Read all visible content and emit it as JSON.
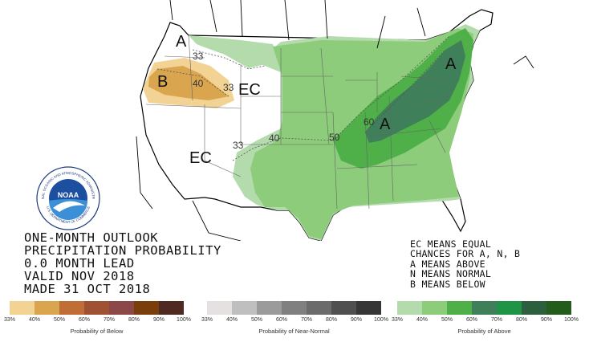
{
  "outlook_text": [
    "ONE-MONTH OUTLOOK",
    "PRECIPITATION PROBABILITY",
    "0.0 MONTH LEAD",
    "VALID NOV 2018",
    "MADE 31 OCT 2018"
  ],
  "legend_notes": [
    "EC MEANS EQUAL",
    "CHANCES FOR A, N, B",
    "A MEANS ABOVE",
    "N MEANS NORMAL",
    "B MEANS BELOW"
  ],
  "map_labels": {
    "a_northwest": "A",
    "a_northeast": "A",
    "a_ohio_valley": "A",
    "b_oregon": "B",
    "ec_west": "EC",
    "ec_southwest": "EC"
  },
  "contour_labels": {
    "c33_oregon": "33",
    "c40_idaho": "40",
    "c33_idaho": "33",
    "c33_newmexico": "33",
    "c40_texas": "40",
    "c50_missouri": "50",
    "c60_kentucky": "60"
  },
  "logo": {
    "text": "NOAA",
    "ring_text": "NATIONAL OCEANIC AND ATMOSPHERIC ADMINISTRATION",
    "ring_bottom": "U.S. DEPARTMENT OF COMMERCE"
  },
  "legends": {
    "below": {
      "title": "Probability of Below",
      "ticks": [
        "33%",
        "40%",
        "50%",
        "60%",
        "70%",
        "80%",
        "90%",
        "100%"
      ],
      "colors": [
        "#f2d394",
        "#d9a54e",
        "#bf6e36",
        "#9e5233",
        "#8c4848",
        "#7a3e0c",
        "#4f2a22"
      ]
    },
    "normal": {
      "title": "Probability of Near-Normal",
      "ticks": [
        "33%",
        "40%",
        "50%",
        "60%",
        "70%",
        "80%",
        "90%",
        "100%"
      ],
      "colors": [
        "#e6e1e1",
        "#bfbfbf",
        "#9b9b9b",
        "#808080",
        "#6b6b6b",
        "#4f4f4f",
        "#363636"
      ]
    },
    "above": {
      "title": "Probability of Above",
      "ticks": [
        "33%",
        "40%",
        "50%",
        "60%",
        "70%",
        "80%",
        "90%",
        "100%"
      ],
      "colors": [
        "#b3dbac",
        "#8ccc7a",
        "#4fb049",
        "#3f7f5a",
        "#1f9447",
        "#2d5e3d",
        "#245c1c"
      ]
    }
  },
  "category_colors": {
    "above_33": "#b3dbac",
    "above_40": "#8ccc7a",
    "above_50": "#4fb049",
    "above_60": "#3f7f5a",
    "below_33": "#f2d394",
    "below_40": "#d9a54e"
  }
}
